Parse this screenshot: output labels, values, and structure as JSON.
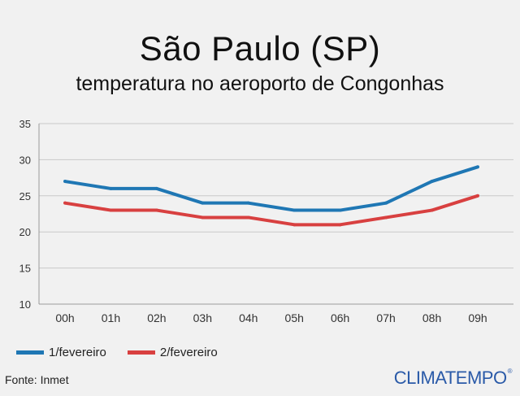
{
  "chart_data": {
    "type": "line",
    "title": "São Paulo (SP)",
    "subtitle": "temperatura no aeroporto de Congonhas",
    "categories": [
      "00h",
      "01h",
      "02h",
      "03h",
      "04h",
      "05h",
      "06h",
      "07h",
      "08h",
      "09h"
    ],
    "series": [
      {
        "name": "1/fevereiro",
        "color": "#1f77b4",
        "values": [
          27,
          26,
          26,
          24,
          24,
          23,
          23,
          24,
          27,
          29
        ]
      },
      {
        "name": "2/fevereiro",
        "color": "#d84040",
        "values": [
          24,
          23,
          23,
          22,
          22,
          21,
          21,
          22,
          23,
          25
        ]
      }
    ],
    "yticks": [
      10,
      15,
      20,
      25,
      30,
      35
    ],
    "ylim": [
      10,
      35
    ],
    "grid": "horizontal",
    "legend_position": "bottom-left"
  },
  "footer": {
    "source": "Fonte: Inmet",
    "brand": "CLIMATEMPO",
    "brand_mark": "®"
  }
}
